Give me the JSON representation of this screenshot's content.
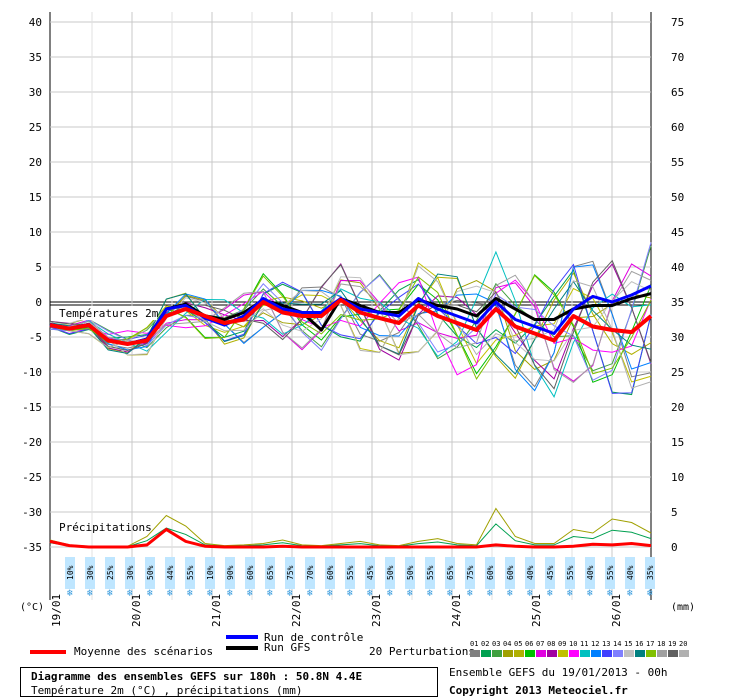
{
  "chart_data": {
    "type": "line",
    "title": "Diagramme des ensembles GEFS sur 180h : 50.8N 4.4E",
    "subtitle": "Température 2m (°C) , précipitations (mm)",
    "ylabel_left": "(°C)",
    "ylabel_right": "(mm)",
    "ylim_left": [
      -35,
      40
    ],
    "yticks_left": [
      "40",
      "35",
      "30",
      "25",
      "20",
      "15",
      "10",
      "5",
      "0",
      "-5",
      "-10",
      "-15",
      "-20",
      "-25",
      "-30",
      "-35"
    ],
    "yticks_right": [
      "75",
      "70",
      "65",
      "60",
      "55",
      "50",
      "45",
      "40",
      "35",
      "30",
      "25",
      "20",
      "15",
      "10",
      "5",
      "0"
    ],
    "x_labels": [
      "19/01",
      "20/01",
      "21/01",
      "22/01",
      "23/01",
      "24/01",
      "25/01",
      "26/01"
    ],
    "grid": true,
    "temp_section_label": "Températures 2m",
    "precip_section_label": "Précipitations",
    "precip_probabilities": [
      "10%",
      "30%",
      "25%",
      "30%",
      "50%",
      "44%",
      "55%",
      "10%",
      "90%",
      "60%",
      "65%",
      "75%",
      "70%",
      "60%",
      "55%",
      "45%",
      "50%",
      "50%",
      "55%",
      "65%",
      "75%",
      "60%",
      "60%",
      "40%",
      "45%",
      "55%",
      "40%",
      "55%",
      "40%",
      "35%"
    ],
    "series": [
      {
        "name": "Moyenne des scénarios",
        "values": [
          -3.3,
          -3.8,
          -3.3,
          -5.5,
          -6.0,
          -5.5,
          -2.0,
          -1.0,
          -2.0,
          -3.0,
          -2.5,
          0.0,
          -1.5,
          -2.0,
          -2.0,
          0.3,
          -1.5,
          -2.3,
          -3.0,
          -0.5,
          -2.0,
          -3.0,
          -4.0,
          -1.0,
          -3.5,
          -4.5,
          -5.5,
          -2.0,
          -3.5,
          -4.0,
          -4.3,
          -2.0
        ]
      },
      {
        "name": "Run de contrôle",
        "values": [
          -3.2,
          -3.8,
          -3.2,
          -5.5,
          -6.0,
          -5.3,
          -1.0,
          -0.5,
          -2.3,
          -3.3,
          -2.0,
          0.5,
          -1.0,
          -1.5,
          -1.5,
          0.5,
          -1.0,
          -1.5,
          -2.0,
          0.5,
          -1.0,
          -2.0,
          -3.0,
          0.0,
          -2.5,
          -3.5,
          -4.5,
          -1.0,
          0.8,
          0.0,
          1.0,
          2.3
        ]
      },
      {
        "name": "Run GFS",
        "values": [
          -3.2,
          -3.8,
          -3.2,
          -5.5,
          -6.0,
          -5.3,
          -1.0,
          -0.3,
          -2.0,
          -2.5,
          -1.5,
          0.3,
          -0.5,
          -1.5,
          -4.0,
          0.5,
          -0.5,
          -1.5,
          -1.5,
          0.3,
          -0.5,
          -1.0,
          -2.0,
          0.5,
          -1.0,
          -2.5,
          -2.5,
          -1.0,
          -0.5,
          -0.5,
          0.5,
          1.2
        ]
      }
    ],
    "precip_mean": [
      0.8,
      0.2,
      0,
      0,
      0,
      0.3,
      2.5,
      0.8,
      0.1,
      0,
      0,
      0,
      0.1,
      0,
      0,
      0,
      0,
      0,
      0,
      0,
      0,
      0,
      0,
      0.3,
      0.1,
      0,
      0,
      0.1,
      0.4,
      0.3,
      0.5,
      0.2
    ],
    "precip_members_max": [
      1.0,
      0.3,
      0.1,
      0,
      0.1,
      1.5,
      4.5,
      3.0,
      0.5,
      0.2,
      0.3,
      0.5,
      1.0,
      0.3,
      0.2,
      0.5,
      0.8,
      0.3,
      0.2,
      0.8,
      1.2,
      0.5,
      0.3,
      5.5,
      1.5,
      0.5,
      0.5,
      2.5,
      2.0,
      4.0,
      3.5,
      2.0
    ]
  },
  "legend": {
    "mean_label": "Moyenne des scénarios",
    "control_label": "Run de contrôle",
    "gfs_label": "Run GFS",
    "perturbations_label": "20 Perturbations",
    "perturbation_numbers": [
      "01",
      "02",
      "03",
      "04",
      "05",
      "06",
      "07",
      "08",
      "09",
      "10",
      "11",
      "12",
      "13",
      "14",
      "15",
      "16",
      "17",
      "18",
      "19",
      "20"
    ],
    "perturbation_colors": [
      "#7f7f7f",
      "#00a050",
      "#40a040",
      "#a0a000",
      "#b0b000",
      "#00c000",
      "#e000e0",
      "#a000a0",
      "#c0c000",
      "#ff00ff",
      "#00c0c0",
      "#0080ff",
      "#4040ff",
      "#8080ff",
      "#c0c0c0",
      "#008080",
      "#80c000",
      "#a0a0a0",
      "#606060",
      "#b0b0b0"
    ],
    "mean_color": "#ff0000",
    "control_color": "#0000ff",
    "gfs_color": "#000000"
  },
  "footer": {
    "ensemble_info": "Ensemble GEFS du 19/01/2013 - 00h",
    "copyright": "Copyright 2013 Meteociel.fr"
  }
}
